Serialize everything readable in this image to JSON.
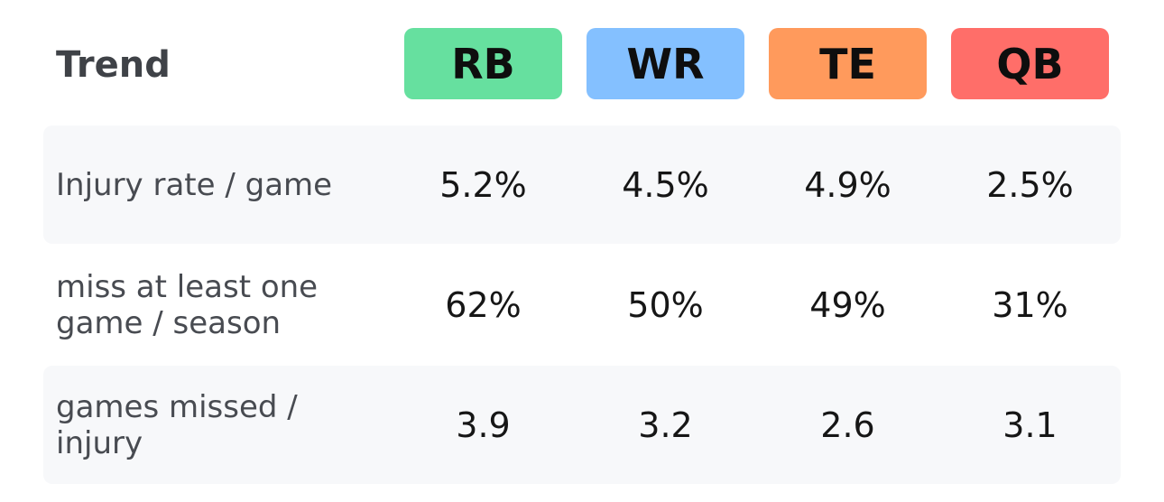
{
  "header": {
    "title": "Trend"
  },
  "positions": [
    {
      "label": "RB",
      "color": "#66e09f"
    },
    {
      "label": "WR",
      "color": "#84c0ff"
    },
    {
      "label": "TE",
      "color": "#ff9a5c"
    },
    {
      "label": "QB",
      "color": "#ff6e69"
    }
  ],
  "rows": [
    {
      "label_lines": [
        "Injury rate / game"
      ],
      "values": [
        "5.2%",
        "4.5%",
        "4.9%",
        "2.5%"
      ]
    },
    {
      "label_lines": [
        "miss at least one",
        "game / season"
      ],
      "values": [
        "62%",
        "50%",
        "49%",
        "31%"
      ]
    },
    {
      "label_lines": [
        "games missed /",
        "injury"
      ],
      "values": [
        "3.9",
        "3.2",
        "2.6",
        "3.1"
      ]
    }
  ]
}
